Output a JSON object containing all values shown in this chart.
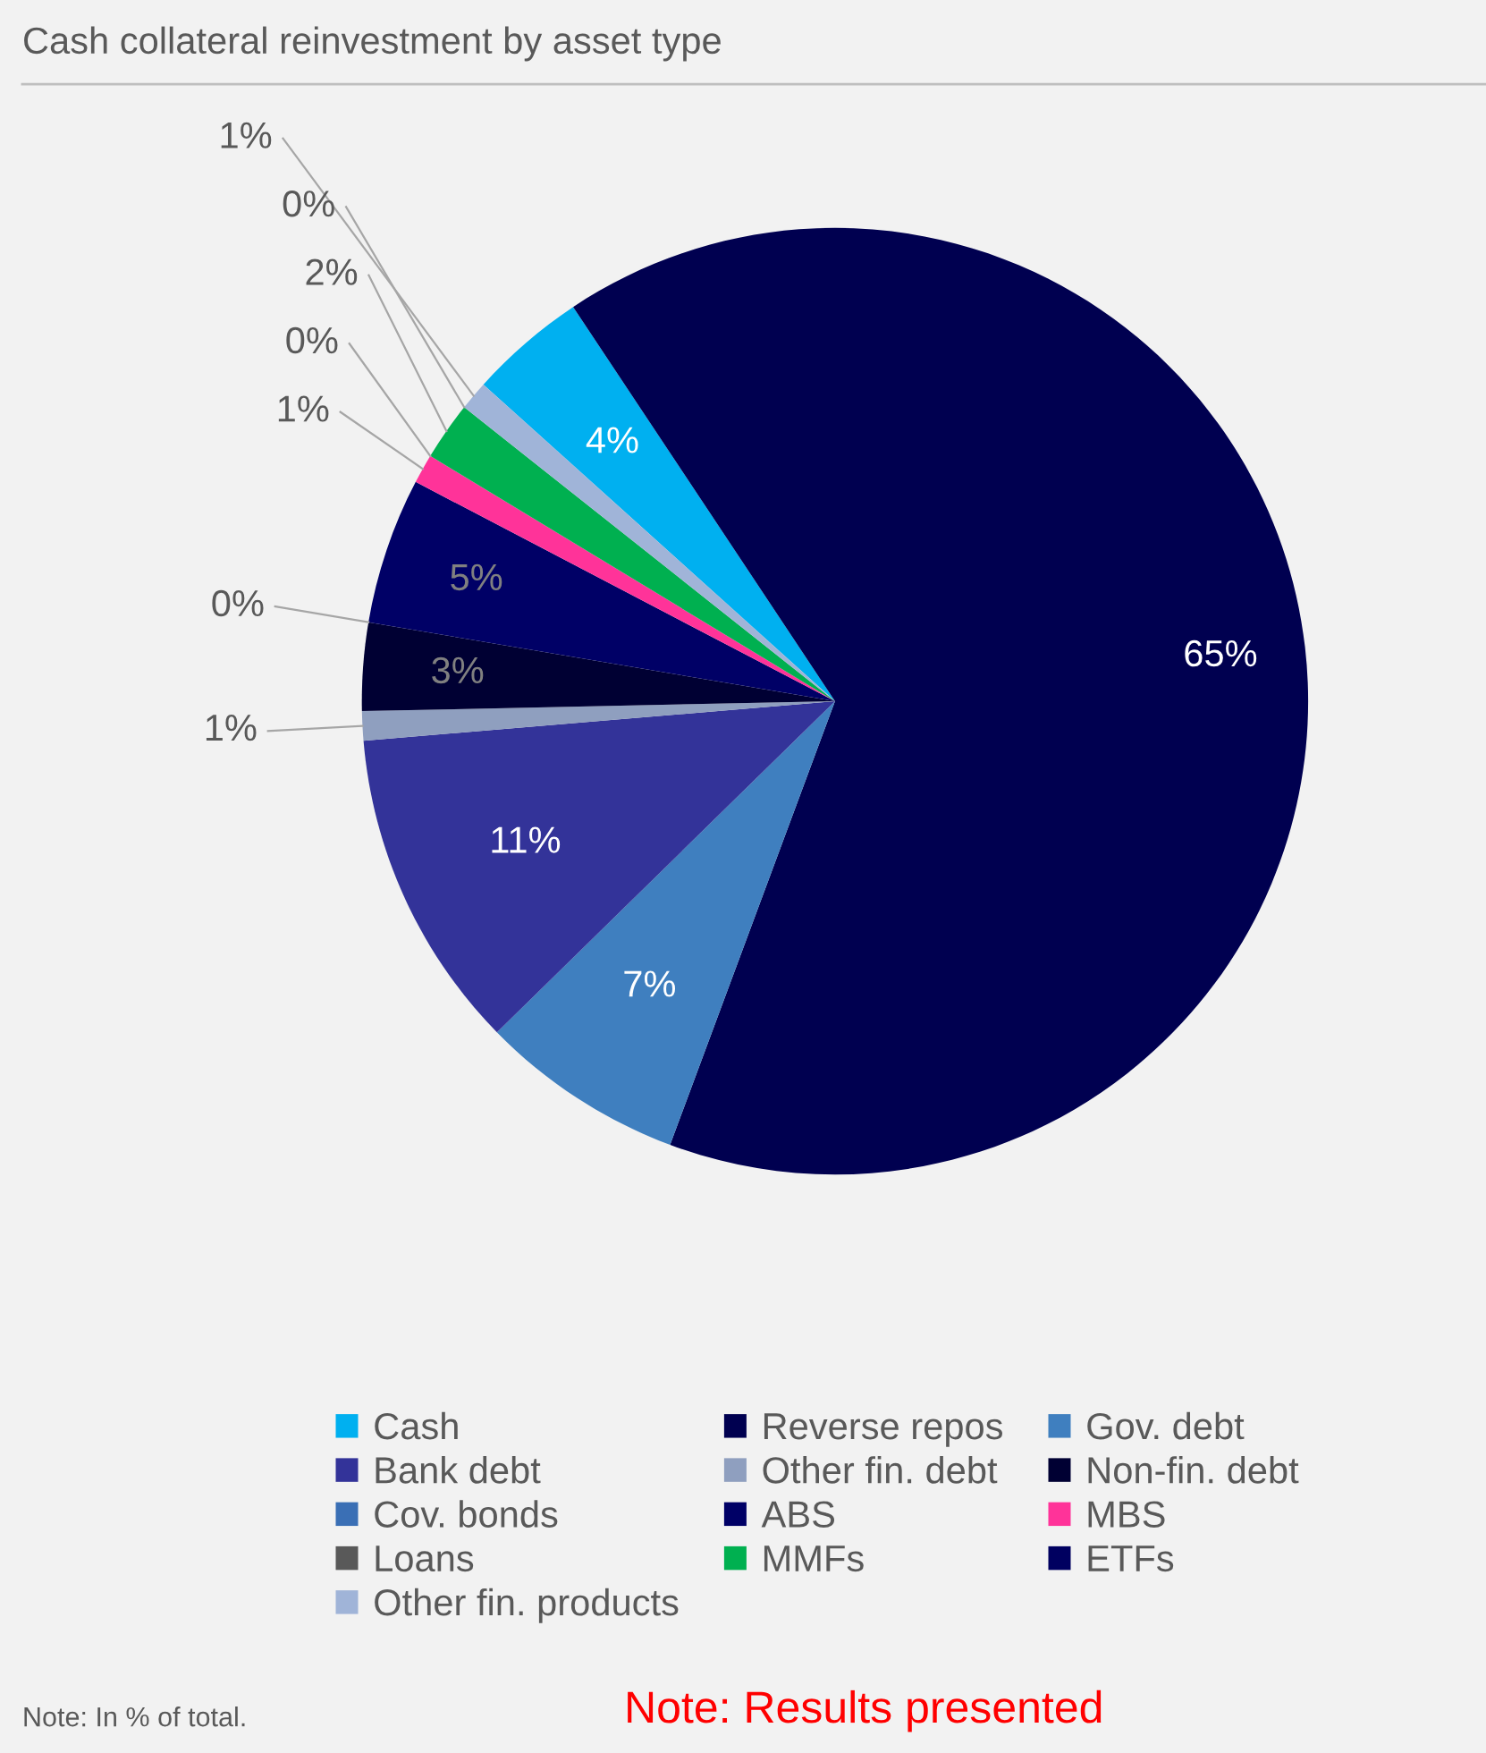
{
  "chart_data": {
    "type": "pie",
    "title": "Cash collateral reinvestment by asset type",
    "categories": [
      "Cash",
      "Reverse repos",
      "Gov. debt",
      "Bank debt",
      "Other fin. debt",
      "Non-fin. debt",
      "Cov. bonds",
      "ABS",
      "MBS",
      "Loans",
      "MMFs",
      "ETFs",
      "Other fin. products"
    ],
    "values": [
      4,
      65,
      7,
      11,
      1,
      3,
      0,
      5,
      1,
      0,
      2,
      0,
      1
    ],
    "value_labels": [
      "4%",
      "65%",
      "7%",
      "11%",
      "1%",
      "3%",
      "0%",
      "5%",
      "1%",
      "0%",
      "2%",
      "0%",
      "1%"
    ],
    "colors": [
      "#00b0f0",
      "#000050",
      "#3f7fbf",
      "#333399",
      "#8f9fbf",
      "#000033",
      "#3a6fb5",
      "#000066",
      "#ff3399",
      "#595959",
      "#00b050",
      "#000060",
      "#a0b4d8"
    ],
    "legend": "bottom",
    "annotations": [
      "Note: In % of total.",
      "Note: Results presented"
    ]
  }
}
